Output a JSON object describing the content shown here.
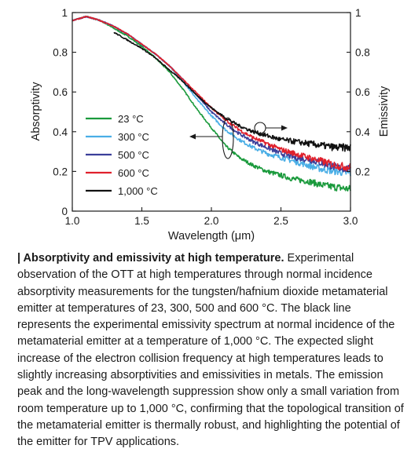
{
  "chart_data": {
    "type": "line",
    "xlabel": "Wavelength (μm)",
    "ylabel_left": "Absorptivity",
    "ylabel_right": "Emissivity",
    "xlim": [
      1.0,
      3.0
    ],
    "ylim": [
      0,
      1
    ],
    "x_ticks": [
      "1.0",
      "1.5",
      "2.0",
      "2.5",
      "3.0"
    ],
    "y_ticks_left": [
      "0",
      "0.2",
      "0.4",
      "0.6",
      "0.8",
      "1"
    ],
    "y_ticks_right": [
      "0.2",
      "0.4",
      "0.6",
      "0.8",
      "1"
    ],
    "legend_position": "left",
    "series": [
      {
        "name": "23 °C",
        "color": "#1a9a3c",
        "x": [
          1.0,
          1.1,
          1.2,
          1.3,
          1.4,
          1.5,
          1.6,
          1.7,
          1.8,
          1.9,
          2.0,
          2.1,
          2.2,
          2.3,
          2.4,
          2.5,
          2.6,
          2.7,
          2.8,
          2.9,
          3.0
        ],
        "y": [
          0.96,
          0.98,
          0.96,
          0.92,
          0.88,
          0.83,
          0.77,
          0.7,
          0.61,
          0.51,
          0.42,
          0.33,
          0.27,
          0.23,
          0.2,
          0.18,
          0.16,
          0.15,
          0.13,
          0.12,
          0.11
        ]
      },
      {
        "name": "300 °C",
        "color": "#4aaee6",
        "x": [
          1.0,
          1.1,
          1.2,
          1.3,
          1.4,
          1.5,
          1.6,
          1.7,
          1.8,
          1.9,
          2.0,
          2.1,
          2.2,
          2.3,
          2.4,
          2.5,
          2.6,
          2.7,
          2.8,
          2.9,
          3.0
        ],
        "y": [
          0.96,
          0.98,
          0.96,
          0.93,
          0.89,
          0.84,
          0.79,
          0.73,
          0.65,
          0.56,
          0.48,
          0.41,
          0.36,
          0.32,
          0.29,
          0.27,
          0.25,
          0.23,
          0.21,
          0.2,
          0.19
        ]
      },
      {
        "name": "500 °C",
        "color": "#3b3f9a",
        "x": [
          1.0,
          1.1,
          1.2,
          1.3,
          1.4,
          1.5,
          1.6,
          1.7,
          1.8,
          1.9,
          2.0,
          2.1,
          2.2,
          2.3,
          2.4,
          2.5,
          2.6,
          2.7,
          2.8,
          2.9,
          3.0
        ],
        "y": [
          0.96,
          0.98,
          0.96,
          0.93,
          0.89,
          0.84,
          0.79,
          0.73,
          0.66,
          0.58,
          0.5,
          0.44,
          0.39,
          0.35,
          0.32,
          0.29,
          0.27,
          0.26,
          0.24,
          0.22,
          0.21
        ]
      },
      {
        "name": "600 °C",
        "color": "#e0202c",
        "x": [
          1.0,
          1.1,
          1.2,
          1.3,
          1.4,
          1.5,
          1.6,
          1.7,
          1.8,
          1.9,
          2.0,
          2.1,
          2.2,
          2.3,
          2.4,
          2.5,
          2.6,
          2.7,
          2.8,
          2.9,
          3.0
        ],
        "y": [
          0.96,
          0.98,
          0.96,
          0.93,
          0.89,
          0.84,
          0.79,
          0.73,
          0.66,
          0.59,
          0.52,
          0.46,
          0.41,
          0.37,
          0.34,
          0.31,
          0.29,
          0.27,
          0.25,
          0.23,
          0.22
        ]
      },
      {
        "name": "1,000 °C",
        "color": "#111111",
        "x": [
          1.3,
          1.4,
          1.5,
          1.6,
          1.7,
          1.8,
          1.9,
          2.0,
          2.1,
          2.2,
          2.3,
          2.4,
          2.5,
          2.6,
          2.7,
          2.8,
          2.9,
          3.0
        ],
        "y": [
          0.9,
          0.86,
          0.82,
          0.77,
          0.71,
          0.65,
          0.58,
          0.52,
          0.47,
          0.43,
          0.4,
          0.38,
          0.36,
          0.35,
          0.34,
          0.33,
          0.32,
          0.32
        ]
      }
    ]
  },
  "caption": {
    "lead": "| Absorptivity and emissivity at high temperature.",
    "body": " Experimental observation of the OTT at high temperatures through normal incidence absorptivity measurements for the tungsten/hafnium dioxide metamaterial emitter at temperatures of 23, 300, 500 and 600 °C. The black line represents the experimental emissivity spectrum at normal incidence of the metamaterial emitter at a temperature of 1,000 °C. The expected slight increase of the electron collision frequency at high temperatures leads to slightly increasing absorptivities and emissivities in metals. The emission peak and the long-wavelength suppression show only a small variation from room temperature up to 1,000 °C, confirming that the topological transition of the metamaterial emitter is thermally robust, and highlighting the potential of the emitter for TPV applications."
  }
}
